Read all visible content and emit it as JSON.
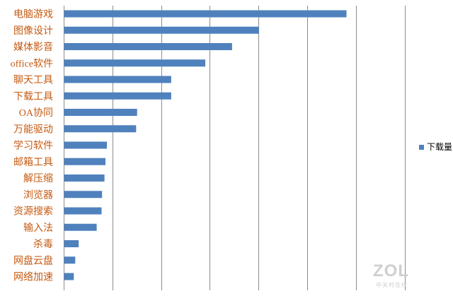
{
  "chart_data": {
    "type": "bar",
    "orientation": "horizontal",
    "categories": [
      "电脑游戏",
      "图像设计",
      "媒体影音",
      "office软件",
      "聊天工具",
      "下载工具",
      "OA协同",
      "万能驱动",
      "学习软件",
      "邮箱工具",
      "解压缩",
      "浏览器",
      "资源搜索",
      "输入法",
      "杀毒",
      "网盘云盘",
      "网络加速"
    ],
    "series": [
      {
        "name": "下载量",
        "color": "#4f81bd",
        "values": [
          5.8,
          4.0,
          3.45,
          2.9,
          2.2,
          2.2,
          1.5,
          1.48,
          0.88,
          0.85,
          0.83,
          0.78,
          0.77,
          0.67,
          0.3,
          0.23,
          0.2
        ]
      }
    ],
    "xlim": [
      0,
      6.5
    ],
    "grid": true,
    "legend_position": "right",
    "category_label_color": "#c55a11"
  },
  "watermark": {
    "logo": "ZOL",
    "subtitle": "中关村在线"
  }
}
